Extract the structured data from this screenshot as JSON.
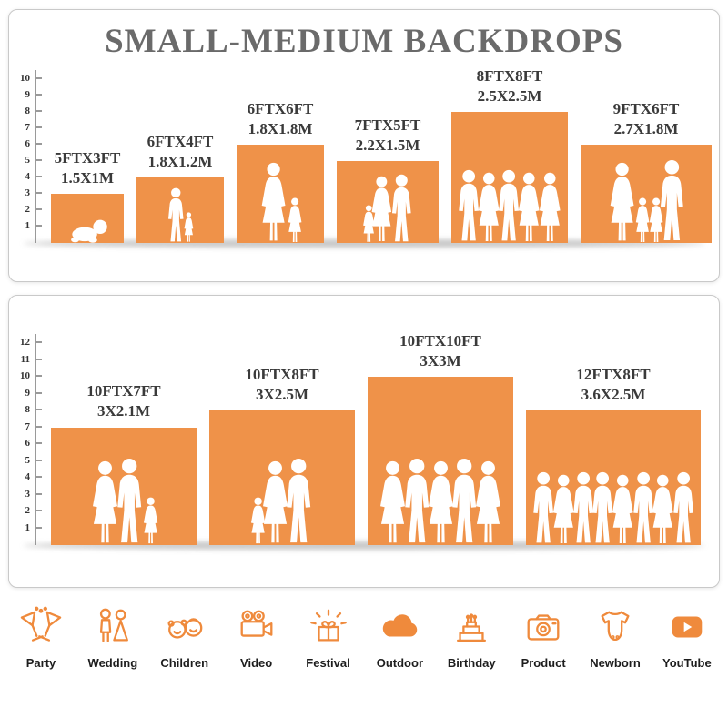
{
  "title": "SMALL-MEDIUM BACKDROPS",
  "accent_color": "#EF9249",
  "icon_color": "#EF8A3C",
  "panels": [
    {
      "name": "small-medium-backdrops",
      "ruler_max": 10,
      "items": [
        {
          "size_ft": "5FTX3FT",
          "size_m": "1.5X1M",
          "width_ft": 5,
          "height_ft": 3,
          "figures": [
            "baby"
          ]
        },
        {
          "size_ft": "6FTX4FT",
          "size_m": "1.8X1.2M",
          "width_ft": 6,
          "height_ft": 4,
          "figures": [
            "man",
            "girl"
          ]
        },
        {
          "size_ft": "6FTX6FT",
          "size_m": "1.8X1.8M",
          "width_ft": 6,
          "height_ft": 6,
          "figures": [
            "woman",
            "girl"
          ]
        },
        {
          "size_ft": "7FTX5FT",
          "size_m": "2.2X1.5M",
          "width_ft": 7,
          "height_ft": 5,
          "figures": [
            "girl",
            "woman",
            "man"
          ]
        },
        {
          "size_ft": "8FTX8FT",
          "size_m": "2.5X2.5M",
          "width_ft": 8,
          "height_ft": 8,
          "figures": [
            "man",
            "woman",
            "man",
            "woman",
            "woman"
          ]
        },
        {
          "size_ft": "9FTX6FT",
          "size_m": "2.7X1.8M",
          "width_ft": 9,
          "height_ft": 6,
          "figures": [
            "woman",
            "girl",
            "girl",
            "man"
          ]
        }
      ]
    },
    {
      "name": "large-backdrops",
      "ruler_max": 12,
      "items": [
        {
          "size_ft": "10FTX7FT",
          "size_m": "3X2.1M",
          "width_ft": 10,
          "height_ft": 7,
          "figures": [
            "woman",
            "man",
            "girl"
          ]
        },
        {
          "size_ft": "10FTX8FT",
          "size_m": "3X2.5M",
          "width_ft": 10,
          "height_ft": 8,
          "figures": [
            "girl",
            "woman",
            "man"
          ]
        },
        {
          "size_ft": "10FTX10FT",
          "size_m": "3X3M",
          "width_ft": 10,
          "height_ft": 10,
          "figures": [
            "woman",
            "man",
            "woman",
            "man",
            "woman"
          ]
        },
        {
          "size_ft": "12FTX8FT",
          "size_m": "3.6X2.5M",
          "width_ft": 12,
          "height_ft": 8,
          "figures": [
            "man",
            "woman",
            "man",
            "man",
            "woman",
            "man",
            "woman",
            "man"
          ]
        }
      ]
    }
  ],
  "categories": [
    {
      "label": "Party",
      "icon": "party-icon"
    },
    {
      "label": "Wedding",
      "icon": "wedding-icon"
    },
    {
      "label": "Children",
      "icon": "children-icon"
    },
    {
      "label": "Video",
      "icon": "video-icon"
    },
    {
      "label": "Festival",
      "icon": "festival-icon"
    },
    {
      "label": "Outdoor",
      "icon": "outdoor-icon"
    },
    {
      "label": "Birthday",
      "icon": "birthday-icon"
    },
    {
      "label": "Product",
      "icon": "product-icon"
    },
    {
      "label": "Newborn",
      "icon": "newborn-icon"
    },
    {
      "label": "YouTube",
      "icon": "youtube-icon"
    }
  ]
}
